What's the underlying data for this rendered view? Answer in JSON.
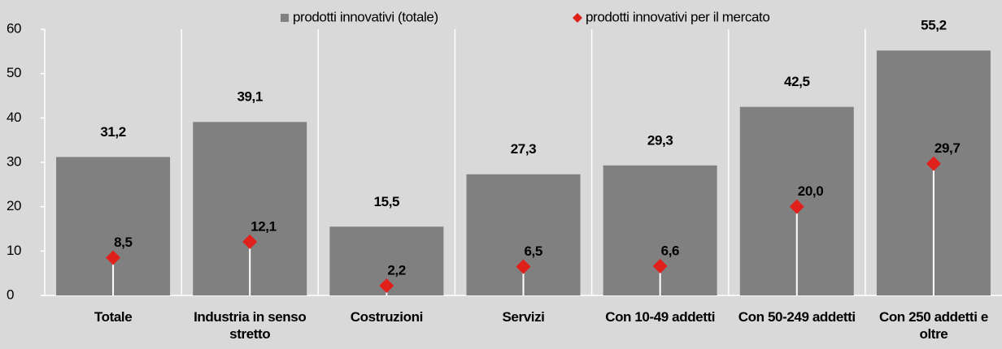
{
  "chart_data": {
    "type": "bar",
    "categories": [
      "Totale",
      "Industria in senso stretto",
      "Costruzioni",
      "Servizi",
      "Con 10-49 addetti",
      "Con 50-249 addetti",
      "Con 250 addetti e oltre"
    ],
    "series": [
      {
        "name": "prodotti innovativi (totale)",
        "color": "#808080",
        "type": "bar",
        "values": [
          31.2,
          39.1,
          15.5,
          27.3,
          29.3,
          42.5,
          55.2
        ],
        "value_labels": [
          "31,2",
          "39,1",
          "15,5",
          "27,3",
          "29,3",
          "42,5",
          "55,2"
        ]
      },
      {
        "name": "prodotti innovativi per il mercato",
        "color": "#e0201b",
        "type": "diamond",
        "values": [
          8.5,
          12.1,
          2.2,
          6.5,
          6.6,
          20.0,
          29.7
        ],
        "value_labels": [
          "8,5",
          "12,1",
          "2,2",
          "6,5",
          "6,6",
          "20,0",
          "29,7"
        ]
      }
    ],
    "ylim": [
      0,
      60
    ],
    "yticks": [
      0,
      10,
      20,
      30,
      40,
      50,
      60
    ],
    "legend": "top",
    "grid": true
  }
}
